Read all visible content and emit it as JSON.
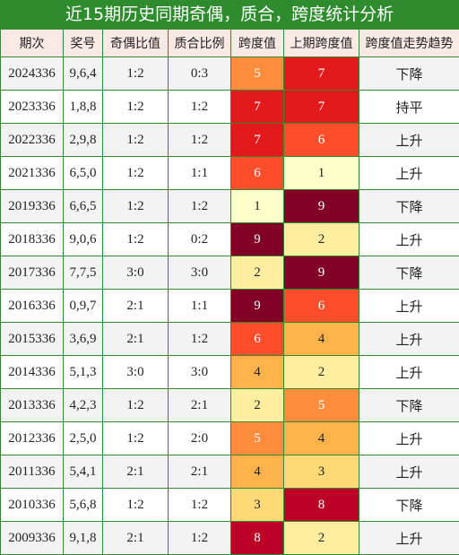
{
  "title": "近15期历史同期奇偶，质合，跨度统计分析",
  "headers": [
    "期次",
    "奖号",
    "奇偶比值",
    "质合比例",
    "跨度值",
    "上期跨度值",
    "跨度值走势趋势"
  ],
  "rows": [
    {
      "issue": "2024336",
      "numbers": "9,6,4",
      "odd_even": "1:2",
      "prime_comp": "0:3",
      "span": "5",
      "prev_span": "7",
      "trend": "下降",
      "span_color": "#fd8d3c",
      "prev_color": "#e31a1c"
    },
    {
      "issue": "2023336",
      "numbers": "1,8,8",
      "odd_even": "1:2",
      "prime_comp": "1:2",
      "span": "7",
      "prev_span": "7",
      "trend": "持平",
      "span_color": "#e31a1c",
      "prev_color": "#e31a1c"
    },
    {
      "issue": "2022336",
      "numbers": "2,9,8",
      "odd_even": "1:2",
      "prime_comp": "1:2",
      "span": "7",
      "prev_span": "6",
      "trend": "上升",
      "span_color": "#e31a1c",
      "prev_color": "#fc4e2a"
    },
    {
      "issue": "2021336",
      "numbers": "6,5,0",
      "odd_even": "1:2",
      "prime_comp": "1:1",
      "span": "6",
      "prev_span": "1",
      "trend": "上升",
      "span_color": "#fc4e2a",
      "prev_color": "#ffffcc"
    },
    {
      "issue": "2019336",
      "numbers": "6,6,5",
      "odd_even": "1:2",
      "prime_comp": "1:2",
      "span": "1",
      "prev_span": "9",
      "trend": "下降",
      "span_color": "#ffffcc",
      "prev_color": "#800026"
    },
    {
      "issue": "2018336",
      "numbers": "9,0,6",
      "odd_even": "1:2",
      "prime_comp": "0:2",
      "span": "9",
      "prev_span": "2",
      "trend": "上升",
      "span_color": "#800026",
      "prev_color": "#ffeda0"
    },
    {
      "issue": "2017336",
      "numbers": "7,7,5",
      "odd_even": "3:0",
      "prime_comp": "3:0",
      "span": "2",
      "prev_span": "9",
      "trend": "下降",
      "span_color": "#ffeda0",
      "prev_color": "#800026"
    },
    {
      "issue": "2016336",
      "numbers": "0,9,7",
      "odd_even": "2:1",
      "prime_comp": "1:1",
      "span": "9",
      "prev_span": "6",
      "trend": "上升",
      "span_color": "#800026",
      "prev_color": "#fc4e2a"
    },
    {
      "issue": "2015336",
      "numbers": "3,6,9",
      "odd_even": "2:1",
      "prime_comp": "1:2",
      "span": "6",
      "prev_span": "4",
      "trend": "上升",
      "span_color": "#fc4e2a",
      "prev_color": "#feb24c"
    },
    {
      "issue": "2014336",
      "numbers": "5,1,3",
      "odd_even": "3:0",
      "prime_comp": "3:0",
      "span": "4",
      "prev_span": "2",
      "trend": "上升",
      "span_color": "#feb24c",
      "prev_color": "#ffeda0"
    },
    {
      "issue": "2013336",
      "numbers": "4,2,3",
      "odd_even": "1:2",
      "prime_comp": "2:1",
      "span": "2",
      "prev_span": "5",
      "trend": "下降",
      "span_color": "#ffeda0",
      "prev_color": "#fd8d3c"
    },
    {
      "issue": "2012336",
      "numbers": "2,5,0",
      "odd_even": "1:2",
      "prime_comp": "2:0",
      "span": "5",
      "prev_span": "4",
      "trend": "上升",
      "span_color": "#fd8d3c",
      "prev_color": "#feb24c"
    },
    {
      "issue": "2011336",
      "numbers": "5,4,1",
      "odd_even": "2:1",
      "prime_comp": "2:1",
      "span": "4",
      "prev_span": "3",
      "trend": "上升",
      "span_color": "#feb24c",
      "prev_color": "#fed976"
    },
    {
      "issue": "2010336",
      "numbers": "5,6,8",
      "odd_even": "1:2",
      "prime_comp": "1:2",
      "span": "3",
      "prev_span": "8",
      "trend": "下降",
      "span_color": "#fed976",
      "prev_color": "#bd0026"
    },
    {
      "issue": "2009336",
      "numbers": "9,1,8",
      "odd_even": "2:1",
      "prime_comp": "1:2",
      "span": "8",
      "prev_span": "2",
      "trend": "上升",
      "span_color": "#bd0026",
      "prev_color": "#ffeda0"
    }
  ]
}
